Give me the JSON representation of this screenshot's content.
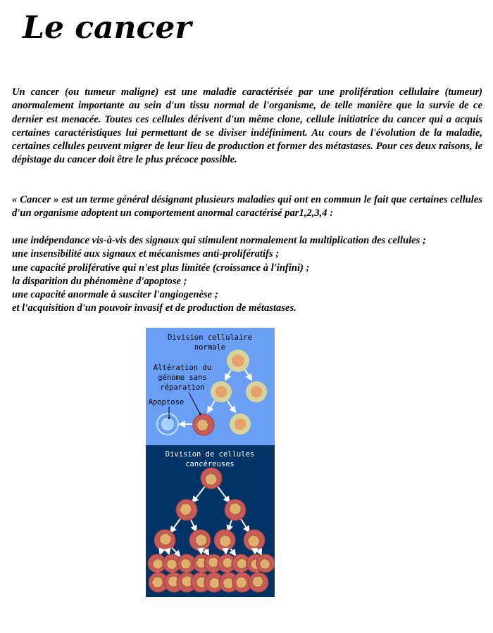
{
  "title": "Le cancer",
  "paragraphs": [
    "Un cancer (ou tumeur maligne) est une maladie caractérisée par une prolifération cellulaire (tumeur) anormalement importante au sein d'un tissu normal de l'organisme, de telle manière que la survie de ce dernier est menacée. Toutes ces cellules dérivent d'un même clone, cellule initiatrice du cancer qui a acquis certaines caractéristiques lui permettant de se diviser indéfiniment. Au cours de l'évolution de la maladie, certaines cellules peuvent migrer de leur lieu de production et former des métastases. Pour ces deux raisons, le dépistage du cancer doit être le plus précoce possible.",
    "« Cancer » est un terme général désignant plusieurs maladies qui ont en commun le fait que certaines cellules d'un organisme adoptent un comportement anormal caractérisé par1,2,3,4 :"
  ],
  "list_items": [
    "une indépendance vis-à-vis des signaux qui stimulent normalement la multiplication des cellules ;",
    "une insensibilité aux signaux et mécanismes anti-prolifératifs ;",
    "une capacité proliférative qui n'est plus limitée (croissance à l'infini) ;",
    "la disparition du phénomène d'apoptose ;",
    "une capacité anormale à susciter l'angiogenèse ;",
    "et l'acquisition d'un pouvoir invasif et de production de métastases."
  ],
  "figure": {
    "top_title_line1": "Division cellulaire",
    "top_title_line2": "normale",
    "alteration_line1": "Altération du",
    "alteration_line2": "génome sans",
    "alteration_line3": "réparation",
    "apoptose_label": "Apoptose",
    "bottom_title_line1": "Division de cellules",
    "bottom_title_line2": "cancéreuses",
    "colors": {
      "top_panel": "#6b9ff5",
      "bottom_panel": "#003366",
      "normal_cell_outer": "#d8d39a",
      "normal_cell_inner": "#e8a06b",
      "cancer_cell_outer": "#c85a5a",
      "cancer_cell_inner": "#e0b070"
    }
  }
}
